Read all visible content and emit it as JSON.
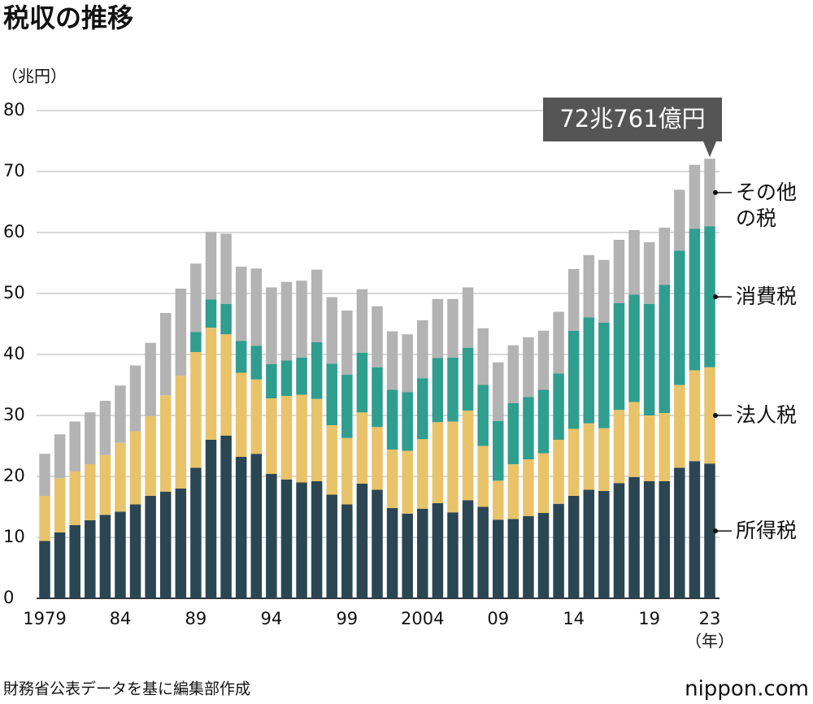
{
  "chart_data": {
    "type": "stacked_bar",
    "title": "税収の推移",
    "y_label": "（兆円）",
    "x_label": "（年）",
    "annotation": "72兆761億円",
    "source": "財務省公表データを基に編集部作成",
    "logo": "nippon.com",
    "categories": [
      "1979",
      null,
      null,
      null,
      null,
      "84",
      null,
      null,
      null,
      null,
      "89",
      null,
      null,
      null,
      null,
      "94",
      null,
      null,
      null,
      null,
      "99",
      null,
      null,
      null,
      null,
      "2004",
      null,
      null,
      null,
      null,
      "09",
      null,
      null,
      null,
      null,
      "14",
      null,
      null,
      null,
      null,
      "19",
      null,
      null,
      null,
      "23"
    ],
    "series": [
      {
        "name": "所得税",
        "color": "#2b4653",
        "values": [
          9.4,
          10.8,
          12.0,
          12.8,
          13.7,
          14.2,
          15.4,
          16.8,
          17.5,
          18.0,
          21.4,
          26.0,
          26.7,
          23.2,
          23.7,
          20.4,
          19.5,
          19.0,
          19.2,
          17.0,
          15.4,
          18.8,
          17.8,
          14.8,
          13.9,
          14.7,
          15.6,
          14.1,
          16.1,
          15.0,
          12.9,
          13.0,
          13.5,
          14.0,
          15.5,
          16.8,
          17.8,
          17.6,
          18.9,
          19.9,
          19.2,
          19.2,
          21.4,
          22.5,
          22.1
        ]
      },
      {
        "name": "法人税",
        "color": "#e8c36a",
        "values": [
          7.4,
          8.9,
          8.8,
          9.2,
          9.8,
          11.3,
          12.0,
          13.1,
          15.8,
          18.5,
          19.0,
          18.4,
          16.6,
          13.8,
          12.2,
          12.4,
          13.7,
          14.4,
          13.5,
          11.4,
          10.9,
          11.7,
          10.3,
          9.6,
          10.3,
          11.4,
          13.3,
          14.9,
          14.7,
          10.0,
          6.4,
          9.0,
          9.3,
          9.8,
          10.5,
          11.0,
          10.9,
          10.3,
          12.0,
          12.3,
          10.8,
          11.2,
          13.6,
          14.9,
          15.8
        ]
      },
      {
        "name": "消費税",
        "color": "#2f9e8f",
        "values": [
          0,
          0,
          0,
          0,
          0,
          0,
          0,
          0,
          0,
          0,
          3.3,
          4.6,
          5.0,
          5.2,
          5.5,
          5.6,
          5.8,
          6.1,
          9.3,
          10.1,
          10.4,
          9.8,
          9.8,
          9.8,
          9.6,
          10.0,
          10.5,
          10.5,
          10.3,
          10.0,
          9.8,
          10.0,
          10.2,
          10.4,
          10.9,
          16.1,
          17.4,
          17.3,
          17.5,
          17.6,
          18.3,
          21.0,
          22.0,
          23.2,
          23.1
        ]
      },
      {
        "name": "その他の税",
        "color": "#b3b3b3",
        "values": [
          6.9,
          7.2,
          8.2,
          8.5,
          8.9,
          9.4,
          10.8,
          12.0,
          13.5,
          14.3,
          11.2,
          11.1,
          11.5,
          12.2,
          12.7,
          12.6,
          12.9,
          12.6,
          11.9,
          10.9,
          10.5,
          10.4,
          10.0,
          9.6,
          9.5,
          9.5,
          9.7,
          9.6,
          9.9,
          9.3,
          9.6,
          9.5,
          9.8,
          9.7,
          10.1,
          10.1,
          10.2,
          10.3,
          10.4,
          10.6,
          10.1,
          9.4,
          10.0,
          10.5,
          11.1
        ]
      }
    ],
    "ylim": [
      0,
      80
    ],
    "yticks": [
      0,
      10,
      20,
      30,
      40,
      50,
      60,
      70,
      80
    ],
    "grid": true
  }
}
